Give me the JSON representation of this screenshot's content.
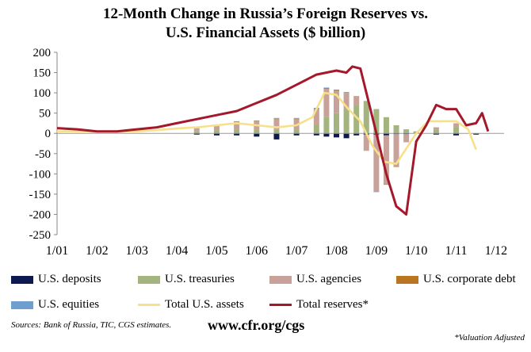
{
  "chart_data": {
    "type": "bar",
    "title_line1": "12-Month Change in Russia’s Foreign Reserves vs.",
    "title_line2": "U.S. Financial Assets ($ billion)",
    "ylim": [
      -250,
      200
    ],
    "yticks": [
      200,
      150,
      100,
      50,
      0,
      -50,
      -100,
      -150,
      -200,
      -250
    ],
    "ytick_labels": [
      "200",
      "150",
      "100",
      "50",
      "0",
      "-50",
      "-100",
      "-150",
      "-200",
      "-250"
    ],
    "xtick_labels": [
      "1/01",
      "1/02",
      "1/03",
      "1/04",
      "1/05",
      "1/06",
      "1/07",
      "1/08",
      "1/09",
      "1/10",
      "1/11",
      "1/12"
    ],
    "x_start_year": 2001,
    "x_end_year": 2012.2,
    "legend_position": "bottom",
    "colors": {
      "deposits": "#0d1a4f",
      "treasuries": "#a3b47e",
      "agencies": "#c8a29a",
      "corporate": "#b9751f",
      "equities": "#6f9fcf",
      "total_us": "#f7e08a",
      "total_reserves": "#a3182b"
    },
    "stacked_bars": {
      "x": [
        2004.5,
        2005.0,
        2005.5,
        2006.0,
        2006.5,
        2007.0,
        2007.5,
        2007.75,
        2008.0,
        2008.25,
        2008.5,
        2008.75,
        2009.0,
        2009.25,
        2009.5,
        2009.75,
        2010.0,
        2010.5,
        2011.0,
        2011.5
      ],
      "series": [
        {
          "name": "U.S. deposits",
          "key": "deposits",
          "values": [
            -3,
            -5,
            -5,
            -8,
            -15,
            -5,
            -5,
            -8,
            -10,
            -12,
            -5,
            -3,
            -3,
            -5,
            -2,
            -2,
            0,
            -3,
            -5,
            -3
          ]
        },
        {
          "name": "U.S. treasuries",
          "key": "treasuries",
          "values": [
            5,
            8,
            10,
            10,
            10,
            10,
            20,
            40,
            50,
            60,
            70,
            80,
            60,
            40,
            20,
            10,
            5,
            10,
            15,
            0
          ]
        },
        {
          "name": "U.S. agencies",
          "key": "agencies",
          "values": [
            10,
            12,
            18,
            20,
            25,
            25,
            40,
            70,
            55,
            40,
            20,
            -40,
            -140,
            -120,
            -80,
            -20,
            0,
            5,
            10,
            0
          ]
        },
        {
          "name": "U.S. corporate debt",
          "key": "corporate",
          "values": [
            1,
            1,
            1,
            1,
            1,
            1,
            1,
            1,
            1,
            1,
            1,
            0,
            -1,
            -1,
            -1,
            0,
            0,
            0,
            0,
            0
          ]
        },
        {
          "name": "U.S. equities",
          "key": "equities",
          "values": [
            1,
            1,
            1,
            1,
            2,
            2,
            2,
            2,
            2,
            1,
            1,
            0,
            -1,
            -1,
            0,
            0,
            0,
            0,
            0,
            0
          ]
        }
      ]
    },
    "lines": [
      {
        "name": "Total U.S. assets",
        "key": "total_us",
        "x": [
          2001,
          2002,
          2003,
          2003.5,
          2004,
          2004.5,
          2005,
          2005.5,
          2006,
          2006.5,
          2007,
          2007.4,
          2007.7,
          2008.0,
          2008.3,
          2008.6,
          2008.9,
          2009.2,
          2009.5,
          2009.8,
          2010.0,
          2010.3,
          2010.6,
          2011.0,
          2011.3,
          2011.5
        ],
        "values": [
          5,
          5,
          5,
          8,
          12,
          15,
          20,
          25,
          20,
          15,
          20,
          40,
          100,
          95,
          60,
          30,
          -30,
          -70,
          -75,
          -30,
          0,
          30,
          30,
          30,
          10,
          -40
        ]
      },
      {
        "name": "Total reserves*",
        "key": "total_reserves",
        "x": [
          2001,
          2001.5,
          2002,
          2002.5,
          2003,
          2003.5,
          2004,
          2004.5,
          2005,
          2005.5,
          2006,
          2006.5,
          2007,
          2007.5,
          2008.0,
          2008.25,
          2008.4,
          2008.6,
          2008.75,
          2009.0,
          2009.25,
          2009.5,
          2009.75,
          2010.0,
          2010.25,
          2010.5,
          2010.75,
          2011.0,
          2011.25,
          2011.5,
          2011.65,
          2011.8
        ],
        "values": [
          13,
          10,
          5,
          5,
          10,
          15,
          25,
          35,
          45,
          55,
          75,
          95,
          120,
          145,
          155,
          150,
          165,
          160,
          100,
          0,
          -100,
          -180,
          -200,
          -20,
          20,
          70,
          60,
          60,
          20,
          25,
          50,
          5
        ]
      }
    ],
    "legend": [
      {
        "label": "U.S. deposits",
        "key": "deposits",
        "style": "box"
      },
      {
        "label": "U.S. treasuries",
        "key": "treasuries",
        "style": "box"
      },
      {
        "label": "U.S. agencies",
        "key": "agencies",
        "style": "box"
      },
      {
        "label": "U.S. corporate debt",
        "key": "corporate",
        "style": "box"
      },
      {
        "label": "U.S. equities",
        "key": "equities",
        "style": "box"
      },
      {
        "label": "Total U.S. assets",
        "key": "total_us",
        "style": "line"
      },
      {
        "label": "Total reserves*",
        "key": "total_reserves",
        "style": "line"
      }
    ]
  },
  "footer": {
    "source": "Sources: Bank of Russia, TIC, CGS estimates.",
    "url": "www.cfr.org/cgs",
    "note": "*Valuation Adjusted"
  }
}
